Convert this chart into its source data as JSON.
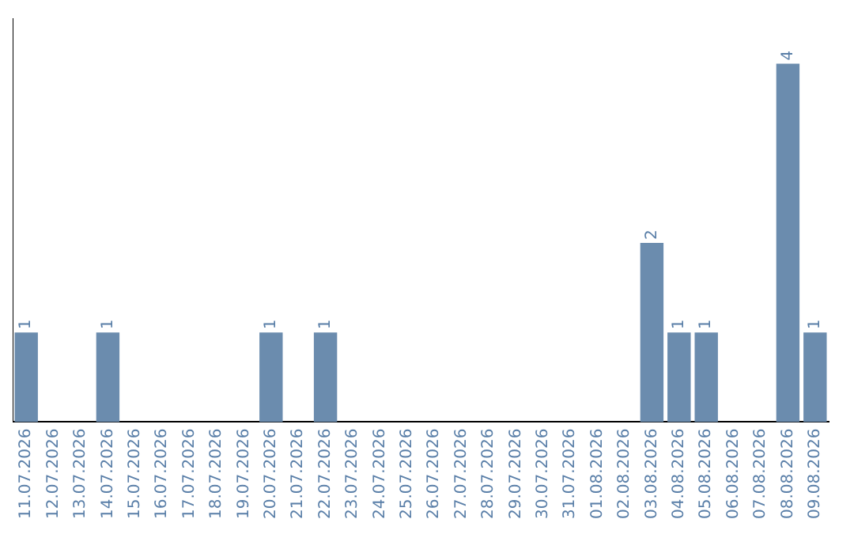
{
  "chart_data": {
    "type": "bar",
    "categories": [
      "11.07.2026",
      "12.07.2026",
      "13.07.2026",
      "14.07.2026",
      "15.07.2026",
      "16.07.2026",
      "17.07.2026",
      "18.07.2026",
      "19.07.2026",
      "20.07.2026",
      "21.07.2026",
      "22.07.2026",
      "23.07.2026",
      "24.07.2026",
      "25.07.2026",
      "26.07.2026",
      "27.07.2026",
      "28.07.2026",
      "29.07.2026",
      "30.07.2026",
      "31.07.2026",
      "01.08.2026",
      "02.08.2026",
      "03.08.2026",
      "04.08.2026",
      "05.08.2026",
      "06.08.2026",
      "07.08.2026",
      "08.08.2026",
      "09.08.2026"
    ],
    "values": [
      1,
      null,
      null,
      1,
      null,
      null,
      null,
      null,
      null,
      1,
      null,
      1,
      null,
      null,
      null,
      null,
      null,
      null,
      null,
      null,
      null,
      null,
      null,
      2,
      1,
      1,
      null,
      null,
      4,
      1
    ],
    "color": "#6b8cae",
    "data_labels": true,
    "grid": false,
    "legend": false,
    "tick_labels": "x"
  }
}
